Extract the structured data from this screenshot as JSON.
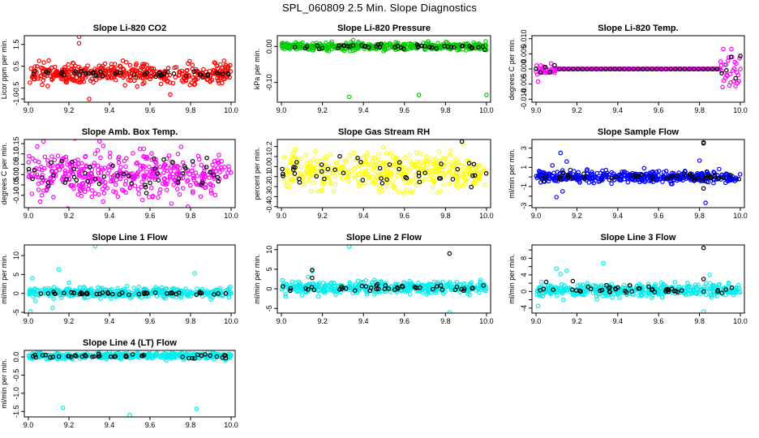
{
  "figure": {
    "title": "SPL_060809  2.5 Min. Slope Diagnostics"
  },
  "chart_data": [
    {
      "type": "scatter",
      "title": "Slope Li-820 CO2",
      "ylabel": "Licor ppm per min.",
      "xlim": [
        8.98,
        10.02
      ],
      "ylim": [
        -1.15,
        1.9
      ],
      "x_ticks": [
        9.0,
        9.2,
        9.4,
        9.6,
        9.8,
        10.0
      ],
      "y_ticks": [
        -1.0,
        -0.5,
        0.5,
        1.5
      ],
      "y_tick_labels": [
        "-1.0",
        "-0.5",
        "0.5",
        "1.5"
      ],
      "series": [
        {
          "color": "#ff0000",
          "spread": 0.28,
          "center": 0.15,
          "n": 420,
          "outliers": [
            [
              9.25,
              1.85
            ],
            [
              9.25,
              1.55
            ],
            [
              9.22,
              0.65
            ],
            [
              9.3,
              -1.0
            ],
            [
              9.7,
              -0.8
            ]
          ]
        },
        {
          "color": "#000000",
          "spread": 0.09,
          "center": 0.15,
          "n": 45,
          "outliers": []
        }
      ]
    },
    {
      "type": "scatter",
      "title": "Slope Li-820 Pressure",
      "ylabel": "kPa per min.",
      "xlim": [
        8.98,
        10.02
      ],
      "ylim": [
        -0.155,
        0.03
      ],
      "x_ticks": [
        9.0,
        9.2,
        9.4,
        9.6,
        9.8,
        10.0
      ],
      "y_ticks": [
        -0.1,
        0.0
      ],
      "y_tick_labels": [
        "-0.10",
        "0.00"
      ],
      "series": [
        {
          "color": "#00cc00",
          "spread": 0.006,
          "center": 0.0,
          "n": 420,
          "outliers": [
            [
              9.33,
              -0.14
            ],
            [
              9.67,
              -0.135
            ],
            [
              10.0,
              -0.135
            ],
            [
              10.0,
              -0.01
            ]
          ]
        },
        {
          "color": "#000000",
          "spread": 0.004,
          "center": 0.0,
          "n": 45,
          "outliers": []
        }
      ]
    },
    {
      "type": "scatter",
      "title": "Slope Li-820 Temp.",
      "ylabel": "degrees C per min.",
      "xlim": [
        8.98,
        10.02
      ],
      "ylim": [
        -0.011,
        0.011
      ],
      "x_ticks": [
        9.0,
        9.2,
        9.4,
        9.6,
        9.8,
        10.0
      ],
      "y_ticks": [
        -0.01,
        -0.005,
        0.0,
        0.005,
        0.01
      ],
      "y_tick_labels": [
        "-0.010",
        "-0.005",
        "0.000",
        "0.005",
        "0.010"
      ],
      "series": [
        {
          "color": "#ff00ff",
          "mode": "temp",
          "n": 300,
          "outliers": []
        },
        {
          "color": "#000000",
          "mode": "tempblack",
          "n": 45,
          "outliers": []
        }
      ]
    },
    {
      "type": "scatter",
      "title": "Slope Amb. Box Temp.",
      "ylabel": "degrees C per min.",
      "xlim": [
        8.98,
        10.02
      ],
      "ylim": [
        -0.16,
        0.17
      ],
      "x_ticks": [
        9.0,
        9.2,
        9.4,
        9.6,
        9.8,
        10.0
      ],
      "y_ticks": [
        -0.1,
        -0.05,
        0.0,
        0.05,
        0.1,
        0.15
      ],
      "y_tick_labels": [
        "-0.10",
        "-0.05",
        "0.00",
        "0.05",
        "0.10",
        "0.15"
      ],
      "series": [
        {
          "color": "#ff00ff",
          "spread": 0.075,
          "center": 0.0,
          "n": 420,
          "outliers": []
        },
        {
          "color": "#000000",
          "spread": 0.05,
          "center": 0.0,
          "n": 50,
          "outliers": []
        }
      ]
    },
    {
      "type": "scatter",
      "title": "Slope Gas Stream RH",
      "ylabel": "percent per min.",
      "xlim": [
        8.98,
        10.02
      ],
      "ylim": [
        -0.41,
        0.27
      ],
      "x_ticks": [
        9.0,
        9.2,
        9.4,
        9.6,
        9.8,
        10.0
      ],
      "y_ticks": [
        -0.4,
        -0.3,
        -0.2,
        -0.1,
        0.0,
        0.1,
        0.2
      ],
      "y_tick_labels": [
        "-0.4",
        "-0.3",
        "-0.2",
        "-0.1",
        "0.0",
        "0.1",
        "0.2"
      ],
      "series": [
        {
          "color": "#ffff00",
          "spread": 0.11,
          "center": -0.05,
          "n": 420,
          "outliers": []
        },
        {
          "color": "#000000",
          "spread": 0.08,
          "center": -0.05,
          "n": 45,
          "outliers": [
            [
              9.88,
              0.25
            ]
          ]
        }
      ]
    },
    {
      "type": "scatter",
      "title": "Slope Sample Flow",
      "ylabel": "ml/min per min.",
      "xlim": [
        8.98,
        10.02
      ],
      "ylim": [
        -3.2,
        3.9
      ],
      "x_ticks": [
        9.0,
        9.2,
        9.4,
        9.6,
        9.8,
        10.0
      ],
      "y_ticks": [
        -3,
        -2,
        -1,
        0,
        1,
        2,
        3
      ],
      "y_tick_labels": [
        "-3",
        "",
        "-1",
        "",
        "1",
        "",
        "3"
      ],
      "series": [
        {
          "color": "#0000ff",
          "spread": 0.35,
          "center": 0.0,
          "n": 440,
          "outliers": [
            [
              9.12,
              2.5
            ],
            [
              9.1,
              -2.1
            ],
            [
              9.15,
              1.6
            ],
            [
              9.13,
              -1.5
            ],
            [
              9.08,
              1.2
            ],
            [
              9.82,
              3.6
            ],
            [
              9.83,
              -2.7
            ],
            [
              9.8,
              1.7
            ]
          ]
        },
        {
          "color": "#000000",
          "spread": 0.25,
          "center": 0.0,
          "n": 45,
          "outliers": [
            [
              9.82,
              3.5
            ],
            [
              9.82,
              -1.2
            ]
          ]
        }
      ]
    },
    {
      "type": "scatter",
      "title": "Slope Line 1 Flow",
      "ylabel": "ml/min per min.",
      "xlim": [
        8.98,
        10.02
      ],
      "ylim": [
        -5.2,
        12.8
      ],
      "x_ticks": [
        9.0,
        9.2,
        9.4,
        9.6,
        9.8,
        10.0
      ],
      "y_ticks": [
        -5,
        0,
        5,
        10
      ],
      "y_tick_labels": [
        "-5",
        "0",
        "5",
        "10"
      ],
      "series": [
        {
          "color": "#00eeee",
          "spread": 0.8,
          "center": 0.2,
          "n": 420,
          "outliers": [
            [
              9.33,
              12.5
            ],
            [
              9.15,
              6.3
            ],
            [
              9.02,
              4.0
            ],
            [
              9.12,
              -3.8
            ],
            [
              9.01,
              -4.8
            ],
            [
              9.82,
              5.3
            ],
            [
              9.2,
              2.8
            ]
          ]
        },
        {
          "color": "#000000",
          "spread": 0.25,
          "center": 0.0,
          "n": 45,
          "outliers": []
        }
      ]
    },
    {
      "type": "scatter",
      "title": "Slope Line 2 Flow",
      "ylabel": "ml/min per min.",
      "xlim": [
        8.98,
        10.02
      ],
      "ylim": [
        -6.2,
        11.2
      ],
      "x_ticks": [
        9.0,
        9.2,
        9.4,
        9.6,
        9.8,
        10.0
      ],
      "y_ticks": [
        -5,
        0,
        5,
        10
      ],
      "y_tick_labels": [
        "-5",
        "0",
        "5",
        "10"
      ],
      "series": [
        {
          "color": "#00eeee",
          "spread": 0.9,
          "center": 0.3,
          "n": 420,
          "outliers": [
            [
              9.33,
              10.8
            ],
            [
              9.15,
              4.5
            ],
            [
              9.82,
              -6.0
            ],
            [
              9.13,
              3.0
            ],
            [
              9.02,
              -2.0
            ]
          ]
        },
        {
          "color": "#000000",
          "spread": 0.5,
          "center": 0.2,
          "n": 45,
          "outliers": [
            [
              9.82,
              9.0
            ],
            [
              9.15,
              4.8
            ],
            [
              9.15,
              2.8
            ]
          ]
        }
      ]
    },
    {
      "type": "scatter",
      "title": "Slope Line 3 Flow",
      "ylabel": "ml/min per min.",
      "xlim": [
        8.98,
        10.02
      ],
      "ylim": [
        -5.2,
        11.2
      ],
      "x_ticks": [
        9.0,
        9.2,
        9.4,
        9.6,
        9.8,
        10.0
      ],
      "y_ticks": [
        -4,
        -2,
        0,
        2,
        4,
        6,
        8,
        10
      ],
      "y_tick_labels": [
        "-4",
        "",
        "0",
        "",
        "4",
        "",
        "8",
        ""
      ],
      "series": [
        {
          "color": "#00eeee",
          "spread": 0.9,
          "center": 0.3,
          "n": 420,
          "outliers": [
            [
              9.33,
              6.8
            ],
            [
              9.15,
              5.0
            ],
            [
              9.12,
              4.2
            ],
            [
              9.1,
              5.5
            ],
            [
              9.82,
              -4.8
            ],
            [
              9.85,
              4.0
            ],
            [
              9.01,
              -3.5
            ]
          ]
        },
        {
          "color": "#000000",
          "spread": 0.6,
          "center": 0.4,
          "n": 45,
          "outliers": [
            [
              9.82,
              10.5
            ],
            [
              9.82,
              3.0
            ],
            [
              9.05,
              2.3
            ],
            [
              9.18,
              2.5
            ]
          ]
        }
      ]
    },
    {
      "type": "scatter",
      "title": "Slope Line 4 (LT) Flow",
      "ylabel": "ml/min per min.",
      "xlim": [
        8.98,
        10.02
      ],
      "ylim": [
        -1.65,
        0.18
      ],
      "x_ticks": [
        9.0,
        9.2,
        9.4,
        9.6,
        9.8,
        10.0
      ],
      "y_ticks": [
        -1.5,
        -1.0,
        -0.5,
        0.0
      ],
      "y_tick_labels": [
        "-1.5",
        "-1.0",
        "-0.5",
        "0.0"
      ],
      "series": [
        {
          "color": "#00eeee",
          "spread": 0.05,
          "center": 0.03,
          "n": 420,
          "outliers": [
            [
              9.17,
              -1.4
            ],
            [
              9.5,
              -1.6
            ],
            [
              9.83,
              -1.43
            ]
          ]
        },
        {
          "color": "#000000",
          "spread": 0.035,
          "center": 0.02,
          "n": 45,
          "outliers": []
        }
      ]
    }
  ]
}
